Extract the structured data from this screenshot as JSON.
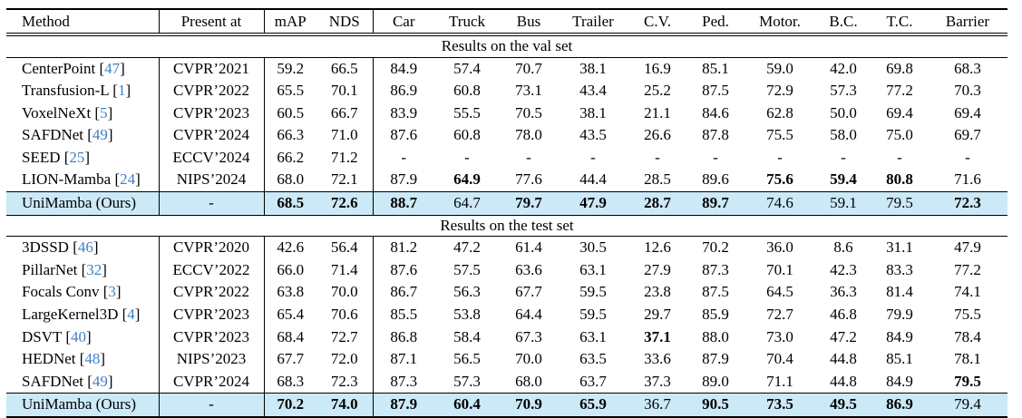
{
  "table": {
    "columns": [
      "Method",
      "Present at",
      "mAP",
      "NDS",
      "Car",
      "Truck",
      "Bus",
      "Trailer",
      "C.V.",
      "Ped.",
      "Motor.",
      "B.C.",
      "T.C.",
      "Barrier"
    ],
    "colors": {
      "highlight": "#cbe9f7",
      "citation": "#4080c4"
    },
    "sections": [
      {
        "title": "Results on the val set",
        "rows": [
          {
            "method": "CenterPoint",
            "cite": "47",
            "venue": "CVPR’2021",
            "highlight": false,
            "values": [
              "59.2",
              "66.5",
              "84.9",
              "57.4",
              "70.7",
              "38.1",
              "16.9",
              "85.1",
              "59.0",
              "42.0",
              "69.8",
              "68.3"
            ],
            "bold": []
          },
          {
            "method": "Transfusion-L",
            "cite": "1",
            "venue": "CVPR’2022",
            "highlight": false,
            "values": [
              "65.5",
              "70.1",
              "86.9",
              "60.8",
              "73.1",
              "43.4",
              "25.2",
              "87.5",
              "72.9",
              "57.3",
              "77.2",
              "70.3"
            ],
            "bold": []
          },
          {
            "method": "VoxelNeXt",
            "cite": "5",
            "venue": "CVPR’2023",
            "highlight": false,
            "values": [
              "60.5",
              "66.7",
              "83.9",
              "55.5",
              "70.5",
              "38.1",
              "21.1",
              "84.6",
              "62.8",
              "50.0",
              "69.4",
              "69.4"
            ],
            "bold": []
          },
          {
            "method": "SAFDNet",
            "cite": "49",
            "venue": "CVPR’2024",
            "highlight": false,
            "values": [
              "66.3",
              "71.0",
              "87.6",
              "60.8",
              "78.0",
              "43.5",
              "26.6",
              "87.8",
              "75.5",
              "58.0",
              "75.0",
              "69.7"
            ],
            "bold": []
          },
          {
            "method": "SEED",
            "cite": "25",
            "venue": "ECCV’2024",
            "highlight": false,
            "values": [
              "66.2",
              "71.2",
              "-",
              "-",
              "-",
              "-",
              "-",
              "-",
              "-",
              "-",
              "-",
              "-"
            ],
            "bold": []
          },
          {
            "method": "LION-Mamba",
            "cite": "24",
            "venue": "NIPS’2024",
            "highlight": false,
            "values": [
              "68.0",
              "72.1",
              "87.9",
              "64.9",
              "77.6",
              "44.4",
              "28.5",
              "89.6",
              "75.6",
              "59.4",
              "80.8",
              "71.6"
            ],
            "bold": [
              3,
              8,
              9,
              10
            ]
          },
          {
            "method": "UniMamba (Ours)",
            "cite": "",
            "venue": "-",
            "highlight": true,
            "values": [
              "68.5",
              "72.6",
              "88.7",
              "64.7",
              "79.7",
              "47.9",
              "28.7",
              "89.7",
              "74.6",
              "59.1",
              "79.5",
              "72.3"
            ],
            "bold": [
              0,
              1,
              2,
              4,
              5,
              6,
              7,
              11
            ]
          }
        ]
      },
      {
        "title": "Results on the test set",
        "rows": [
          {
            "method": "3DSSD",
            "cite": "46",
            "venue": "CVPR’2020",
            "highlight": false,
            "values": [
              "42.6",
              "56.4",
              "81.2",
              "47.2",
              "61.4",
              "30.5",
              "12.6",
              "70.2",
              "36.0",
              "8.6",
              "31.1",
              "47.9"
            ],
            "bold": []
          },
          {
            "method": "PillarNet",
            "cite": "32",
            "venue": "ECCV’2022",
            "highlight": false,
            "values": [
              "66.0",
              "71.4",
              "87.6",
              "57.5",
              "63.6",
              "63.1",
              "27.9",
              "87.3",
              "70.1",
              "42.3",
              "83.3",
              "77.2"
            ],
            "bold": []
          },
          {
            "method": "Focals Conv",
            "cite": "3",
            "venue": "CVPR’2022",
            "highlight": false,
            "values": [
              "63.8",
              "70.0",
              "86.7",
              "56.3",
              "67.7",
              "59.5",
              "23.8",
              "87.5",
              "64.5",
              "36.3",
              "81.4",
              "74.1"
            ],
            "bold": []
          },
          {
            "method": "LargeKernel3D",
            "cite": "4",
            "venue": "CVPR’2023",
            "highlight": false,
            "values": [
              "65.4",
              "70.6",
              "85.5",
              "53.8",
              "64.4",
              "59.5",
              "29.7",
              "85.9",
              "72.7",
              "46.8",
              "79.9",
              "75.5"
            ],
            "bold": []
          },
          {
            "method": "DSVT",
            "cite": "40",
            "venue": "CVPR’2023",
            "highlight": false,
            "values": [
              "68.4",
              "72.7",
              "86.8",
              "58.4",
              "67.3",
              "63.1",
              "37.1",
              "88.0",
              "73.0",
              "47.2",
              "84.9",
              "78.4"
            ],
            "bold": [
              6
            ]
          },
          {
            "method": "HEDNet",
            "cite": "48",
            "venue": "NIPS’2023",
            "highlight": false,
            "values": [
              "67.7",
              "72.0",
              "87.1",
              "56.5",
              "70.0",
              "63.5",
              "33.6",
              "87.9",
              "70.4",
              "44.8",
              "85.1",
              "78.1"
            ],
            "bold": []
          },
          {
            "method": "SAFDNet",
            "cite": "49",
            "venue": "CVPR’2024",
            "highlight": false,
            "values": [
              "68.3",
              "72.3",
              "87.3",
              "57.3",
              "68.0",
              "63.7",
              "37.3",
              "89.0",
              "71.1",
              "44.8",
              "84.9",
              "79.5"
            ],
            "bold": [
              11
            ]
          },
          {
            "method": "UniMamba (Ours)",
            "cite": "",
            "venue": "-",
            "highlight": true,
            "values": [
              "70.2",
              "74.0",
              "87.9",
              "60.4",
              "70.9",
              "65.9",
              "36.7",
              "90.5",
              "73.5",
              "49.5",
              "86.9",
              "79.4"
            ],
            "bold": [
              0,
              1,
              2,
              3,
              4,
              5,
              7,
              8,
              9,
              10
            ]
          }
        ]
      }
    ]
  }
}
